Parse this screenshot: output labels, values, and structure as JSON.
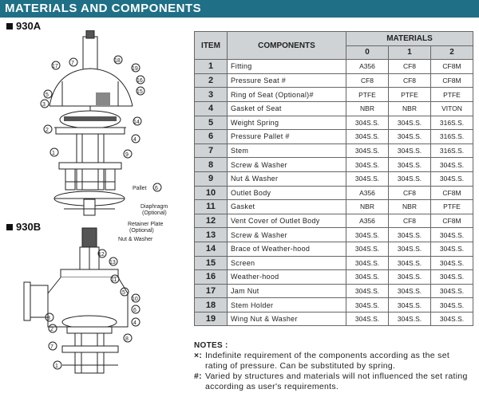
{
  "title": "MATERIALS AND COMPONENTS",
  "models": {
    "a": "930A",
    "b": "930B"
  },
  "callouts": {
    "pallet": "Pallet",
    "diaphragm": "Diaphragm",
    "diaphragm_sub": "(Optional)",
    "retainer": "Retainer Plate",
    "retainer_sub": "(Optional)",
    "nut_washer": "Nut & Washer"
  },
  "table": {
    "head_item": "ITEM",
    "head_components": "COMPONENTS",
    "head_materials": "MATERIALS",
    "material_cols": [
      "0",
      "1",
      "2"
    ],
    "rows": [
      {
        "item": "1",
        "component": "Fitting",
        "m0": "A356",
        "m1": "CF8",
        "m2": "CF8M"
      },
      {
        "item": "2",
        "component": "Pressure Seat #",
        "m0": "CF8",
        "m1": "CF8",
        "m2": "CF8M"
      },
      {
        "item": "3",
        "component": "Ring of Seat (Optional)#",
        "m0": "PTFE",
        "m1": "PTFE",
        "m2": "PTFE"
      },
      {
        "item": "4",
        "component": "Gasket of Seat",
        "m0": "NBR",
        "m1": "NBR",
        "m2": "VITON"
      },
      {
        "item": "5",
        "component": "Weight Spring",
        "m0": "304S.S.",
        "m1": "304S.S.",
        "m2": "316S.S."
      },
      {
        "item": "6",
        "component": "Pressure Pallet #",
        "m0": "304S.S.",
        "m1": "304S.S.",
        "m2": "316S.S."
      },
      {
        "item": "7",
        "component": "Stem",
        "m0": "304S.S.",
        "m1": "304S.S.",
        "m2": "316S.S."
      },
      {
        "item": "8",
        "component": "Screw & Washer",
        "m0": "304S.S.",
        "m1": "304S.S.",
        "m2": "304S.S."
      },
      {
        "item": "9",
        "component": "Nut & Washer",
        "m0": "304S.S.",
        "m1": "304S.S.",
        "m2": "304S.S."
      },
      {
        "item": "10",
        "component": "Outlet Body",
        "m0": "A356",
        "m1": "CF8",
        "m2": "CF8M"
      },
      {
        "item": "11",
        "component": "Gasket",
        "m0": "NBR",
        "m1": "NBR",
        "m2": "PTFE"
      },
      {
        "item": "12",
        "component": "Vent Cover of Outlet Body",
        "m0": "A356",
        "m1": "CF8",
        "m2": "CF8M"
      },
      {
        "item": "13",
        "component": "Screw & Washer",
        "m0": "304S.S.",
        "m1": "304S.S.",
        "m2": "304S.S."
      },
      {
        "item": "14",
        "component": "Brace of Weather-hood",
        "m0": "304S.S.",
        "m1": "304S.S.",
        "m2": "304S.S."
      },
      {
        "item": "15",
        "component": "Screen",
        "m0": "304S.S.",
        "m1": "304S.S.",
        "m2": "304S.S."
      },
      {
        "item": "16",
        "component": "Weather-hood",
        "m0": "304S.S.",
        "m1": "304S.S.",
        "m2": "304S.S."
      },
      {
        "item": "17",
        "component": "Jam Nut",
        "m0": "304S.S.",
        "m1": "304S.S.",
        "m2": "304S.S."
      },
      {
        "item": "18",
        "component": "Stem Holder",
        "m0": "304S.S.",
        "m1": "304S.S.",
        "m2": "304S.S."
      },
      {
        "item": "19",
        "component": "Wing Nut & Washer",
        "m0": "304S.S.",
        "m1": "304S.S.",
        "m2": "304S.S."
      }
    ]
  },
  "notes": {
    "heading": "NOTES :",
    "items": [
      {
        "symbol": "×:",
        "text": "Indefinite requirement of the components according as the set rating of pressure. Can be substituted by spring."
      },
      {
        "symbol": "#:",
        "text": "Varied by structures and materials will not influenced the set rating according as user's requirements."
      }
    ]
  }
}
